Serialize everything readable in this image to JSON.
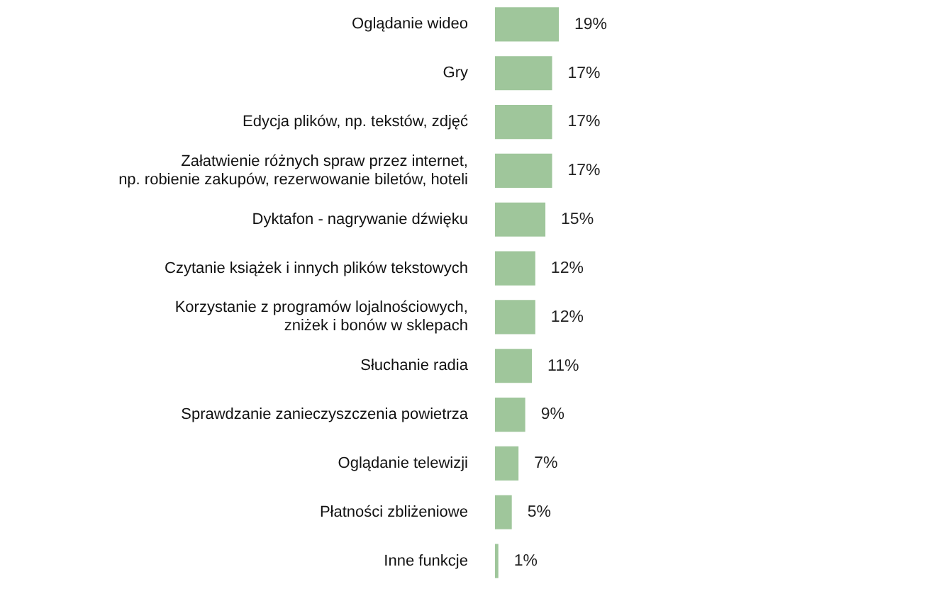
{
  "chart_data": {
    "type": "bar",
    "orientation": "horizontal",
    "categories": [
      "Oglądanie wideo",
      "Gry",
      "Edycja plików, np. tekstów, zdjęć",
      "Załatwienie różnych spraw przez internet,\nnp. robienie zakupów, rezerwowanie biletów, hoteli",
      "Dyktafon - nagrywanie dźwięku",
      "Czytanie książek i innych plików tekstowych",
      "Korzystanie z programów lojalnościowych,\nzniżek i bonów w sklepach",
      "Słuchanie radia",
      "Sprawdzanie zanieczyszczenia powietrza",
      "Oglądanie telewizji",
      "Płatności zbliżeniowe",
      "Inne funkcje"
    ],
    "values": [
      19,
      17,
      17,
      17,
      15,
      12,
      12,
      11,
      9,
      7,
      5,
      1
    ],
    "value_labels": [
      "19%",
      "17%",
      "17%",
      "17%",
      "15%",
      "12%",
      "12%",
      "11%",
      "9%",
      "7%",
      "5%",
      "1%"
    ],
    "color": "#9fc69b",
    "legend": false
  }
}
